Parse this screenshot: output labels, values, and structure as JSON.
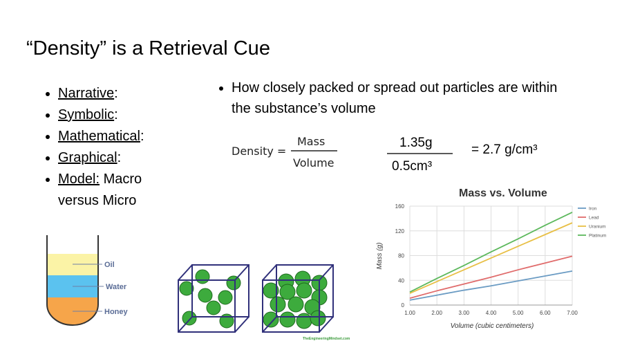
{
  "title": "“Density” is a Retrieval Cue",
  "left_bullets": [
    {
      "term": "Narrative",
      "rest": ":"
    },
    {
      "term": "Symbolic",
      "rest": ":"
    },
    {
      "term": "Mathematical",
      "rest": ":"
    },
    {
      "term": "Graphical",
      "rest": ":"
    },
    {
      "term": "Model:",
      "rest": " Macro versus Micro"
    }
  ],
  "right_bullet": "How closely packed or spread out particles are within the substance’s volume",
  "formula": {
    "lhs": "Density =",
    "numerator": "Mass",
    "denominator": "Volume"
  },
  "example": {
    "numerator": "1.35g",
    "denominator": "0.5cm³",
    "result": "= 2.7 g/cm³"
  },
  "tube_labels": [
    "Oil",
    "Water",
    "Honey"
  ],
  "watermark": "TheEngineeringMindset.com",
  "chart_data": {
    "type": "line",
    "title": "Mass vs. Volume",
    "x_label": "Volume (cubic centimeters)",
    "y_label": "Mass (g)",
    "x": [
      1,
      2,
      3,
      4,
      5,
      6,
      7
    ],
    "xlim": [
      1,
      7
    ],
    "xticks": [
      {
        "value": 1,
        "label": "1.00"
      },
      {
        "value": 2,
        "label": "2.00"
      },
      {
        "value": 3,
        "label": "3.00"
      },
      {
        "value": 4,
        "label": "4.00"
      },
      {
        "value": 5,
        "label": "5.00"
      },
      {
        "value": 6,
        "label": "6.00"
      },
      {
        "value": 7,
        "label": "7.00"
      }
    ],
    "ylim": [
      0,
      160
    ],
    "yticks": [
      0,
      40,
      80,
      120,
      160
    ],
    "grid": true,
    "legend": "upper right outside",
    "series": [
      {
        "name": "Iron",
        "color": "#6a9bc3",
        "values": [
          8,
          16,
          24,
          31,
          39,
          47,
          55
        ]
      },
      {
        "name": "Lead",
        "color": "#e06b6b",
        "values": [
          11,
          23,
          34,
          45,
          57,
          68,
          79
        ]
      },
      {
        "name": "Uranium",
        "color": "#e8bf45",
        "values": [
          19,
          38,
          57,
          76,
          95,
          114,
          133
        ]
      },
      {
        "name": "Platinum",
        "color": "#5cb85c",
        "values": [
          21,
          43,
          64,
          86,
          107,
          129,
          150
        ]
      }
    ]
  }
}
